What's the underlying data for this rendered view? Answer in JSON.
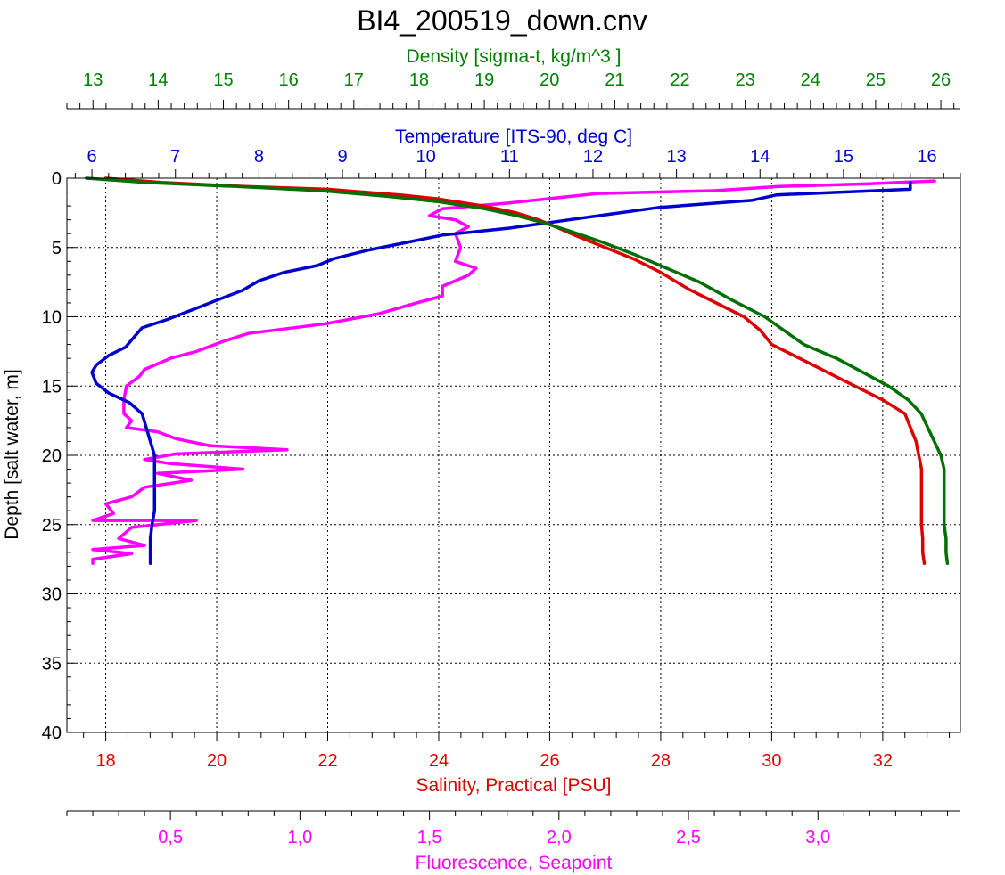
{
  "chart_data": {
    "type": "line",
    "title": "BI4_200519_down.cnv",
    "decimal_separator": ",",
    "grid": true,
    "axes": {
      "depth": {
        "label": "Depth [salt water, m]",
        "position": "left",
        "range": [
          0,
          40
        ],
        "inverted": true,
        "ticks": [
          0,
          5,
          10,
          15,
          20,
          25,
          30,
          35,
          40
        ],
        "minor_step": 1,
        "color": "#000000"
      },
      "density": {
        "label": "Density [sigma-t, kg/m^3 ]",
        "position": "top",
        "range": [
          12.6,
          26.3
        ],
        "ticks": [
          13,
          14,
          15,
          16,
          17,
          18,
          19,
          20,
          21,
          22,
          23,
          24,
          25,
          26
        ],
        "minor_step": 0.2,
        "color": "#008000"
      },
      "temperature": {
        "label": "Temperature [ITS-90, deg C]",
        "position": "top",
        "range": [
          5.7,
          16.4
        ],
        "ticks": [
          6,
          7,
          8,
          9,
          10,
          11,
          12,
          13,
          14,
          15,
          16
        ],
        "minor_step": 0.2,
        "color": "#0000cc"
      },
      "salinity": {
        "label": "Salinity, Practical [PSU]",
        "position": "bottom",
        "range": [
          17.3,
          33.4
        ],
        "ticks": [
          18,
          20,
          22,
          24,
          26,
          28,
          30,
          32
        ],
        "minor_step": 0.4,
        "color": "#dd0000"
      },
      "fluorescence": {
        "label": "Fluorescence, Seapoint",
        "position": "bottom",
        "range": [
          0.1,
          3.55
        ],
        "ticks": [
          0.5,
          1.0,
          1.5,
          2.0,
          2.5,
          3.0
        ],
        "minor_step": 0.1,
        "color": "#ff00ff"
      }
    },
    "series": [
      {
        "axis": "fluorescence",
        "color": "#ff00ff",
        "points": [
          [
            3.45,
            0.2
          ],
          [
            3.2,
            0.4
          ],
          [
            2.85,
            0.6
          ],
          [
            2.6,
            0.9
          ],
          [
            2.15,
            1.1
          ],
          [
            2.0,
            1.4
          ],
          [
            1.8,
            1.8
          ],
          [
            1.55,
            2.2
          ],
          [
            1.5,
            2.7
          ],
          [
            1.6,
            3.0
          ],
          [
            1.65,
            3.5
          ],
          [
            1.6,
            4.0
          ],
          [
            1.62,
            5.0
          ],
          [
            1.6,
            6.0
          ],
          [
            1.68,
            6.5
          ],
          [
            1.65,
            7.0
          ],
          [
            1.55,
            7.8
          ],
          [
            1.55,
            8.5
          ],
          [
            1.45,
            9.0
          ],
          [
            1.3,
            9.8
          ],
          [
            1.1,
            10.5
          ],
          [
            0.8,
            11.2
          ],
          [
            0.7,
            11.8
          ],
          [
            0.6,
            12.5
          ],
          [
            0.5,
            13.0
          ],
          [
            0.4,
            13.8
          ],
          [
            0.38,
            14.3
          ],
          [
            0.33,
            15.0
          ],
          [
            0.32,
            16.0
          ],
          [
            0.32,
            17.0
          ],
          [
            0.35,
            17.5
          ],
          [
            0.33,
            18.0
          ],
          [
            0.45,
            18.3
          ],
          [
            0.52,
            18.8
          ],
          [
            0.65,
            19.3
          ],
          [
            0.95,
            19.6
          ],
          [
            0.52,
            19.9
          ],
          [
            0.4,
            20.3
          ],
          [
            0.5,
            20.6
          ],
          [
            0.78,
            21.0
          ],
          [
            0.45,
            21.3
          ],
          [
            0.58,
            21.8
          ],
          [
            0.4,
            22.3
          ],
          [
            0.35,
            23.0
          ],
          [
            0.25,
            23.5
          ],
          [
            0.28,
            24.2
          ],
          [
            0.2,
            24.7
          ],
          [
            0.6,
            24.7
          ],
          [
            0.35,
            25.2
          ],
          [
            0.3,
            26.0
          ],
          [
            0.4,
            26.5
          ],
          [
            0.2,
            26.8
          ],
          [
            0.35,
            27.1
          ],
          [
            0.2,
            27.5
          ],
          [
            0.2,
            27.8
          ]
        ]
      },
      {
        "axis": "temperature",
        "color": "#0000cc",
        "points": [
          [
            15.8,
            0.3
          ],
          [
            15.8,
            0.8
          ],
          [
            14.2,
            1.2
          ],
          [
            13.9,
            1.6
          ],
          [
            12.8,
            2.1
          ],
          [
            12.2,
            2.6
          ],
          [
            11.6,
            3.1
          ],
          [
            11.0,
            3.6
          ],
          [
            10.2,
            4.1
          ],
          [
            9.8,
            4.6
          ],
          [
            9.3,
            5.2
          ],
          [
            8.9,
            5.8
          ],
          [
            8.7,
            6.3
          ],
          [
            8.3,
            6.8
          ],
          [
            8.0,
            7.4
          ],
          [
            7.8,
            8.1
          ],
          [
            7.5,
            8.8
          ],
          [
            7.2,
            9.5
          ],
          [
            6.9,
            10.2
          ],
          [
            6.6,
            10.8
          ],
          [
            6.5,
            11.5
          ],
          [
            6.4,
            12.2
          ],
          [
            6.2,
            12.8
          ],
          [
            6.05,
            13.5
          ],
          [
            6.0,
            14.0
          ],
          [
            6.05,
            14.8
          ],
          [
            6.2,
            15.5
          ],
          [
            6.45,
            16.2
          ],
          [
            6.6,
            17.0
          ],
          [
            6.65,
            18.0
          ],
          [
            6.7,
            19.0
          ],
          [
            6.75,
            20.0
          ],
          [
            6.75,
            21.0
          ],
          [
            6.75,
            22.5
          ],
          [
            6.75,
            24.0
          ],
          [
            6.72,
            25.0
          ],
          [
            6.7,
            26.0
          ],
          [
            6.7,
            27.0
          ],
          [
            6.7,
            27.8
          ]
        ]
      },
      {
        "axis": "salinity",
        "color": "#dd0000",
        "points": [
          [
            18.0,
            0.0
          ],
          [
            19.0,
            0.3
          ],
          [
            20.5,
            0.6
          ],
          [
            22.0,
            0.8
          ],
          [
            23.3,
            1.2
          ],
          [
            24.0,
            1.5
          ],
          [
            24.8,
            2.0
          ],
          [
            25.4,
            2.5
          ],
          [
            25.8,
            3.0
          ],
          [
            26.1,
            3.5
          ],
          [
            26.5,
            4.2
          ],
          [
            27.0,
            5.0
          ],
          [
            27.5,
            5.8
          ],
          [
            28.0,
            6.8
          ],
          [
            28.5,
            8.0
          ],
          [
            29.0,
            9.0
          ],
          [
            29.5,
            10.0
          ],
          [
            29.8,
            11.0
          ],
          [
            30.0,
            12.0
          ],
          [
            30.5,
            13.0
          ],
          [
            31.0,
            14.0
          ],
          [
            31.5,
            15.0
          ],
          [
            32.0,
            16.0
          ],
          [
            32.4,
            17.0
          ],
          [
            32.5,
            18.0
          ],
          [
            32.6,
            19.0
          ],
          [
            32.65,
            20.0
          ],
          [
            32.7,
            21.0
          ],
          [
            32.7,
            22.5
          ],
          [
            32.7,
            24.0
          ],
          [
            32.7,
            25.0
          ],
          [
            32.72,
            26.0
          ],
          [
            32.72,
            27.0
          ],
          [
            32.75,
            27.8
          ]
        ]
      },
      {
        "axis": "density",
        "color": "#007000",
        "points": [
          [
            12.9,
            0.0
          ],
          [
            13.8,
            0.3
          ],
          [
            15.2,
            0.6
          ],
          [
            16.5,
            0.9
          ],
          [
            17.5,
            1.3
          ],
          [
            18.3,
            1.7
          ],
          [
            19.0,
            2.2
          ],
          [
            19.5,
            2.7
          ],
          [
            19.9,
            3.2
          ],
          [
            20.3,
            3.8
          ],
          [
            20.8,
            4.6
          ],
          [
            21.3,
            5.5
          ],
          [
            21.8,
            6.5
          ],
          [
            22.3,
            7.5
          ],
          [
            22.8,
            8.8
          ],
          [
            23.3,
            10.0
          ],
          [
            23.6,
            11.0
          ],
          [
            23.9,
            12.0
          ],
          [
            24.4,
            13.0
          ],
          [
            24.8,
            14.0
          ],
          [
            25.2,
            15.0
          ],
          [
            25.5,
            16.0
          ],
          [
            25.7,
            17.0
          ],
          [
            25.8,
            18.0
          ],
          [
            25.9,
            19.0
          ],
          [
            26.0,
            20.0
          ],
          [
            26.05,
            21.0
          ],
          [
            26.05,
            22.5
          ],
          [
            26.05,
            24.0
          ],
          [
            26.05,
            25.0
          ],
          [
            26.08,
            26.0
          ],
          [
            26.08,
            27.0
          ],
          [
            26.1,
            27.8
          ]
        ]
      }
    ]
  }
}
